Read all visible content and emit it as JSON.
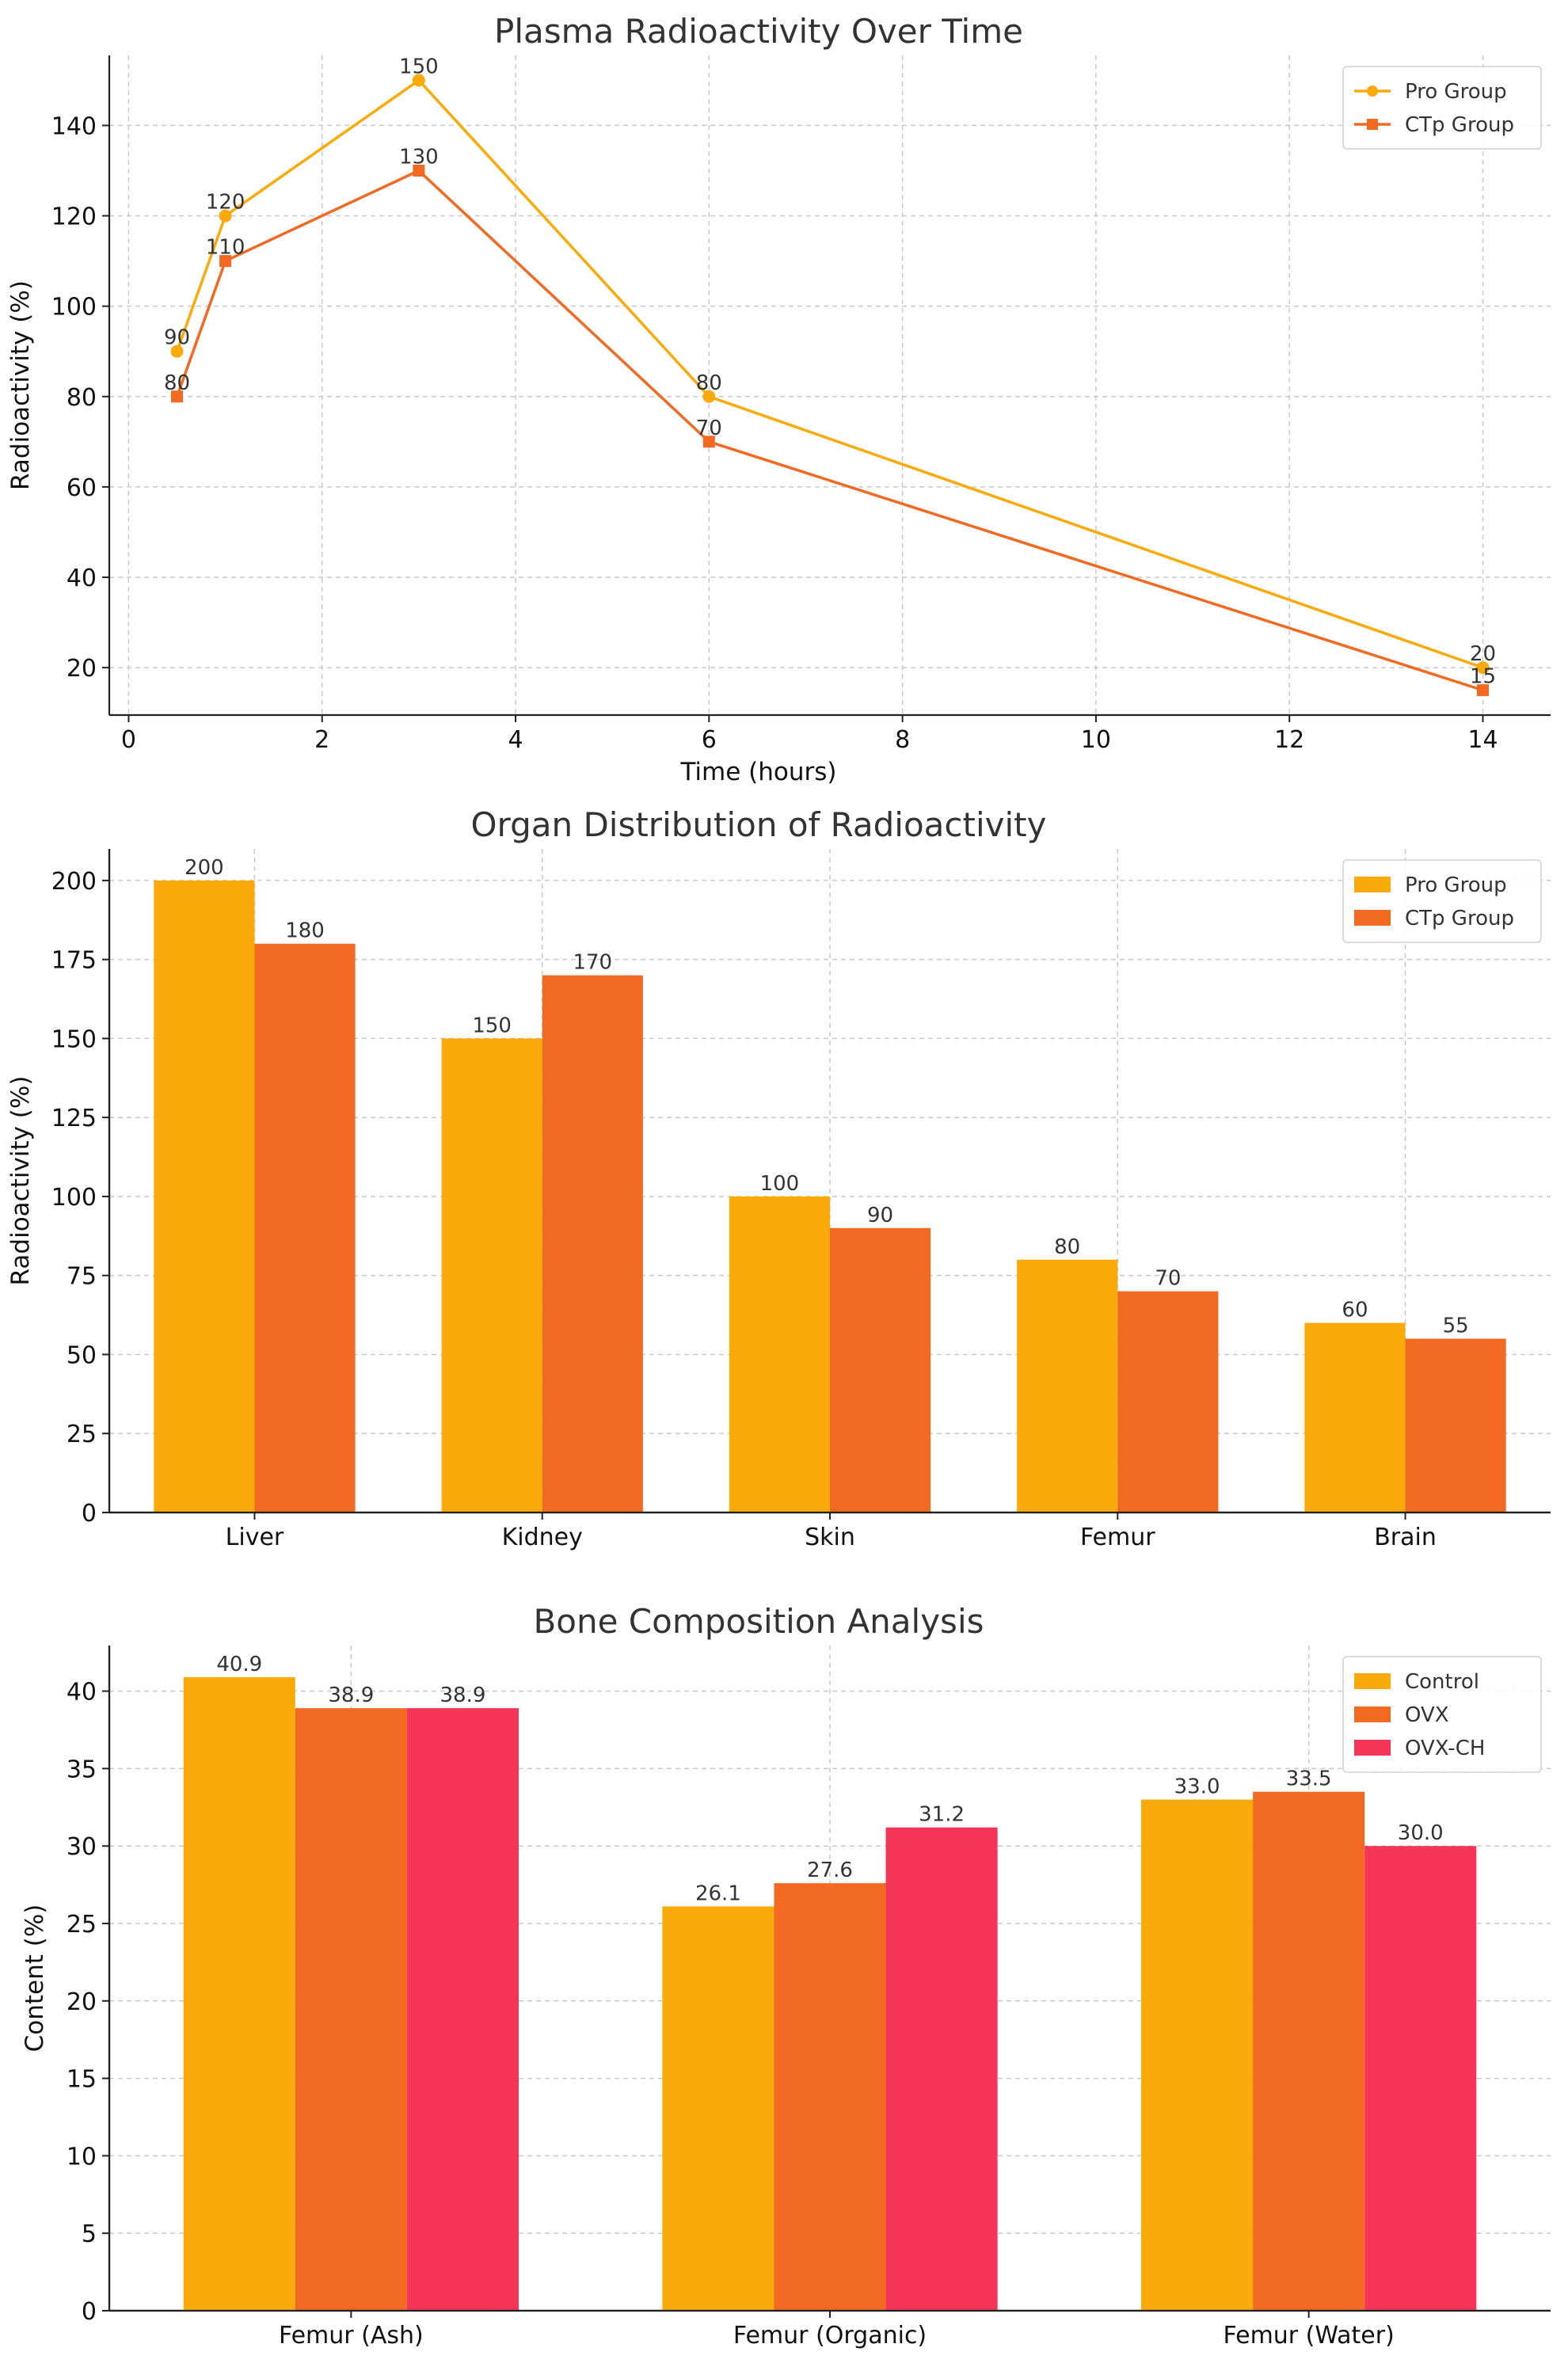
{
  "chart_data": [
    {
      "type": "line",
      "title": "Plasma Radioactivity Over Time",
      "xlabel": "Time (hours)",
      "ylabel": "Radioactivity (%)",
      "xlim": [
        -0.2,
        14.7
      ],
      "ylim": [
        9.5,
        155.5
      ],
      "xticks": [
        0,
        2,
        4,
        6,
        8,
        10,
        12,
        14
      ],
      "yticks": [
        20,
        40,
        60,
        80,
        100,
        120,
        140
      ],
      "grid": true,
      "legend_position": "top-right",
      "series": [
        {
          "name": "Pro Group",
          "color": "#FAAA0A",
          "marker": "circle",
          "x": [
            0.5,
            1,
            3,
            6,
            14
          ],
          "values": [
            90,
            120,
            150,
            80,
            20
          ]
        },
        {
          "name": "CTp Group",
          "color": "#F26A22",
          "marker": "square",
          "x": [
            0.5,
            1,
            3,
            6,
            14
          ],
          "values": [
            80,
            110,
            130,
            70,
            15
          ]
        }
      ]
    },
    {
      "type": "bar",
      "title": "Organ Distribution of Radioactivity",
      "xlabel": "",
      "ylabel": "Radioactivity (%)",
      "ylim": [
        0,
        210
      ],
      "yticks": [
        0,
        25,
        50,
        75,
        100,
        125,
        150,
        175,
        200
      ],
      "grid": true,
      "legend_position": "top-right",
      "categories": [
        "Liver",
        "Kidney",
        "Skin",
        "Femur",
        "Brain"
      ],
      "series": [
        {
          "name": "Pro Group",
          "color": "#FAAA0A",
          "values": [
            200,
            150,
            100,
            80,
            60
          ]
        },
        {
          "name": "CTp Group",
          "color": "#F26A22",
          "values": [
            180,
            170,
            90,
            70,
            55
          ]
        }
      ]
    },
    {
      "type": "bar",
      "title": "Bone Composition Analysis",
      "xlabel": "",
      "ylabel": "Content (%)",
      "ylim": [
        0,
        42.945
      ],
      "yticks": [
        0,
        5,
        10,
        15,
        20,
        25,
        30,
        35,
        40
      ],
      "grid": true,
      "legend_position": "top-right",
      "value_format": 1,
      "categories": [
        "Femur (Ash)",
        "Femur (Organic)",
        "Femur (Water)"
      ],
      "series": [
        {
          "name": "Control",
          "color": "#FAAA0A",
          "values": [
            40.9,
            26.1,
            33.0
          ]
        },
        {
          "name": "OVX",
          "color": "#F26A22",
          "values": [
            38.9,
            27.6,
            33.5
          ]
        },
        {
          "name": "OVX-CH",
          "color": "#F53557",
          "values": [
            38.9,
            31.2,
            30.0
          ]
        }
      ]
    }
  ]
}
